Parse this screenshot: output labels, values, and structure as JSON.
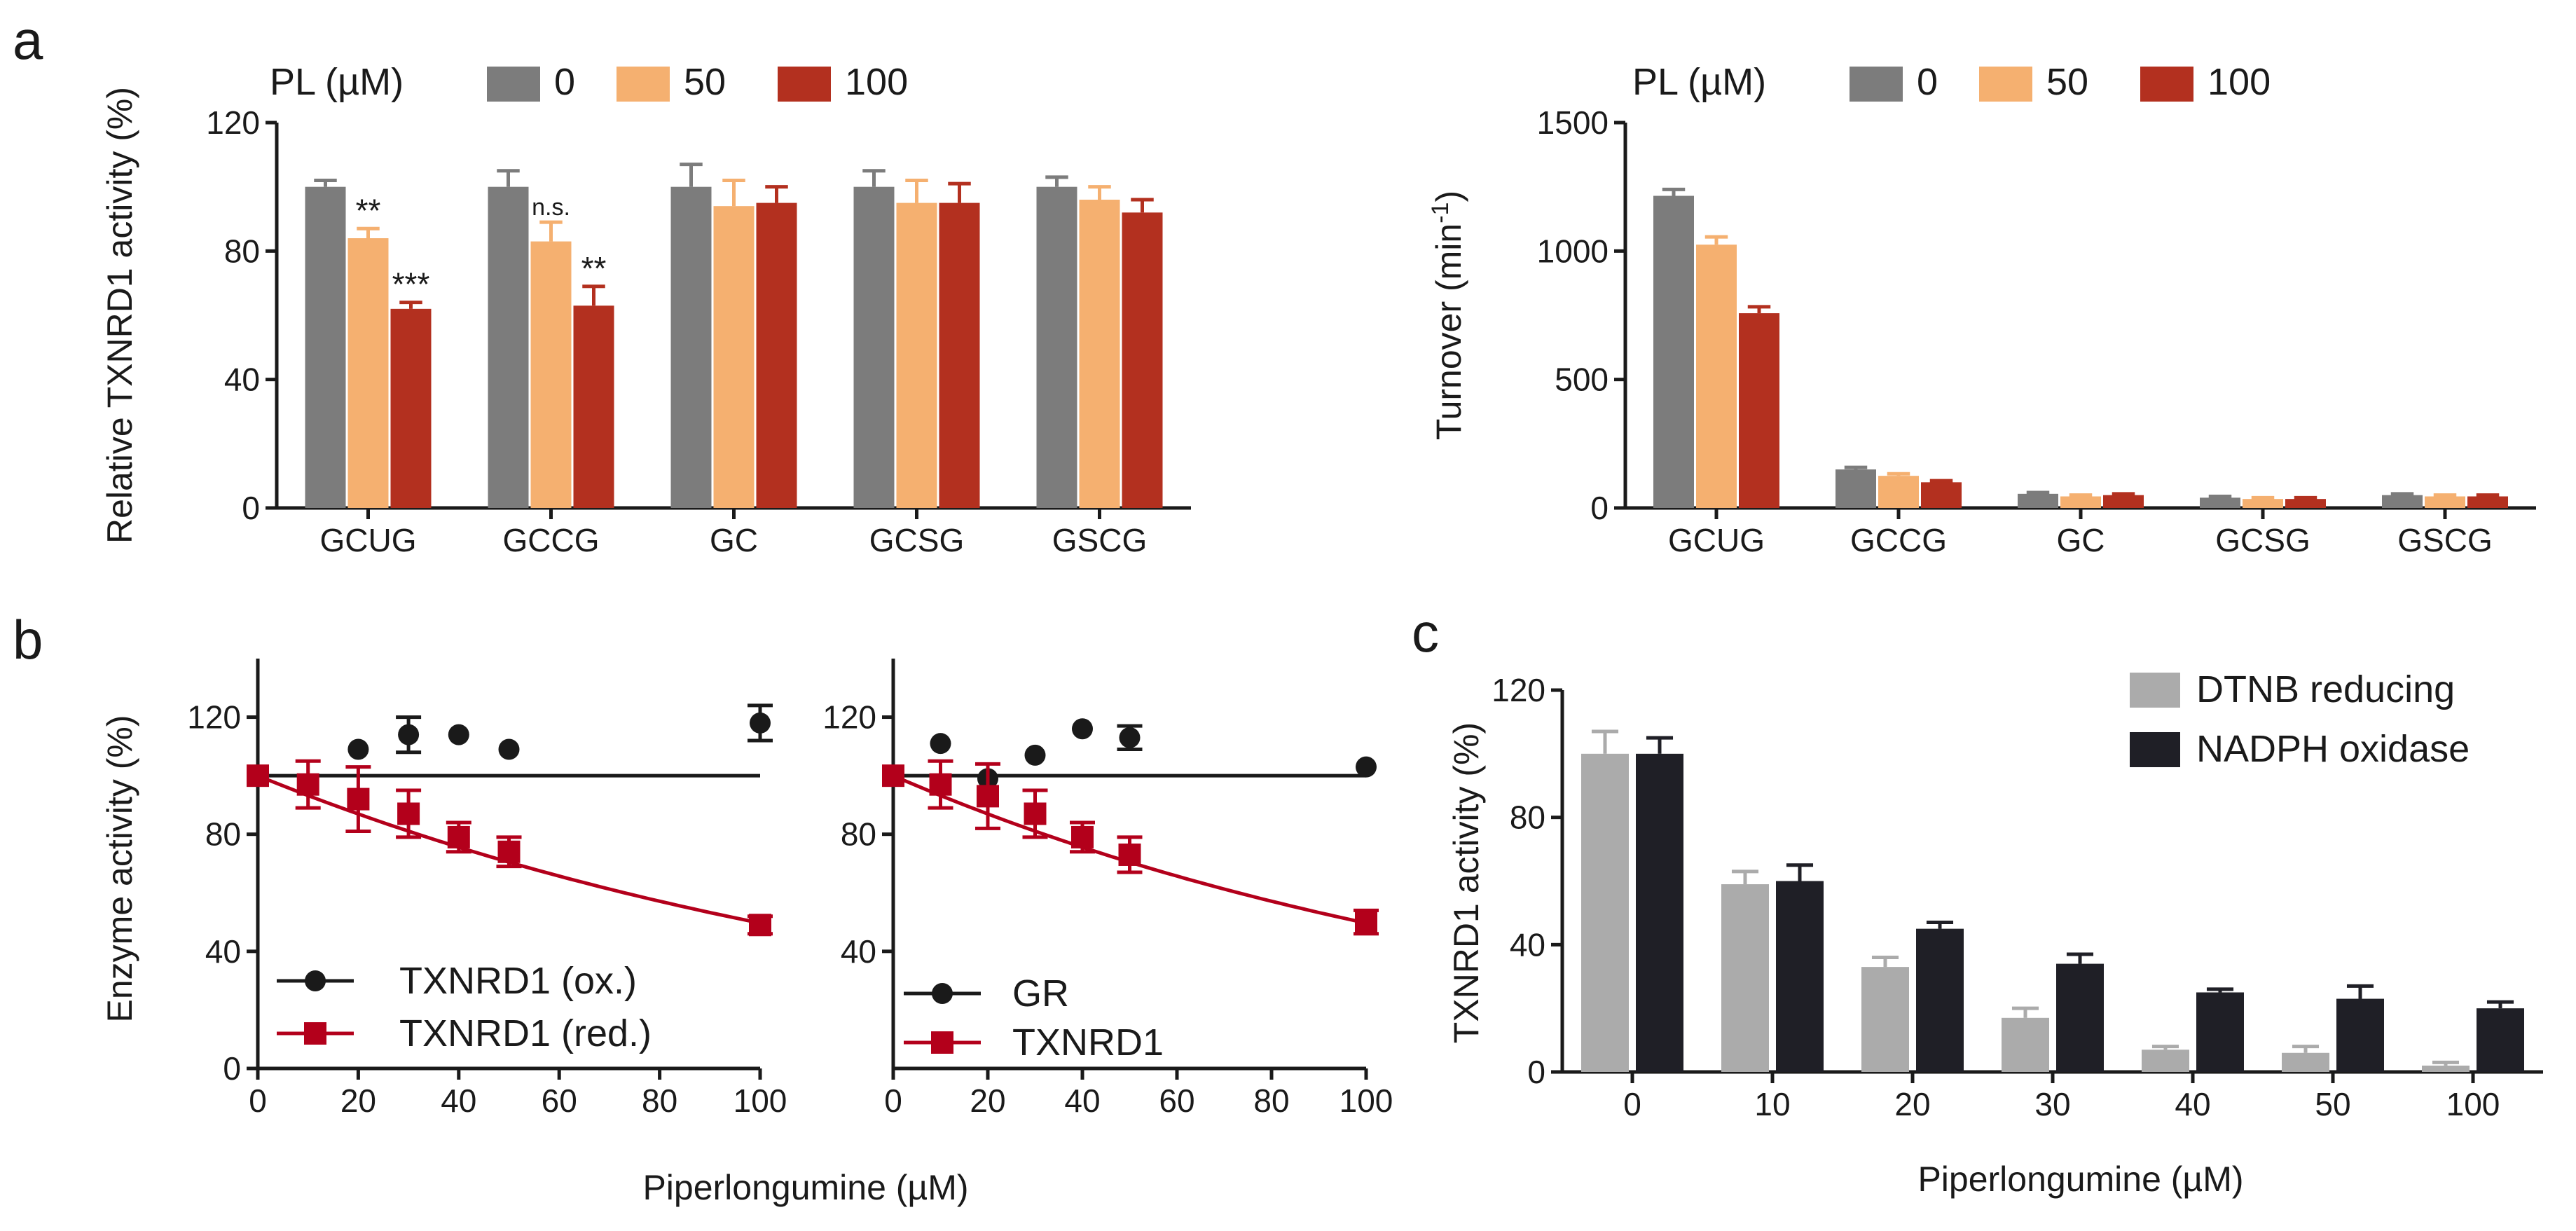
{
  "colors": {
    "pl0": "#7c7c7c",
    "pl50": "#f5b070",
    "pl100": "#b3301f",
    "dtnb": "#ababab",
    "nadph": "#1f1f26",
    "ox": "#1a1a1a",
    "red": "#b3001b"
  },
  "panels": {
    "a": "a",
    "b": "b",
    "c": "c"
  },
  "chart_data": [
    {
      "id": "a1",
      "type": "bar",
      "legend_title": "PL (µM)",
      "categories": [
        "GCUG",
        "GCCG",
        "GC",
        "GCSG",
        "GSCG"
      ],
      "series": [
        {
          "name": "0",
          "values": [
            100,
            100,
            100,
            100,
            100
          ],
          "errors": [
            2,
            5,
            7,
            5,
            3
          ]
        },
        {
          "name": "50",
          "values": [
            84,
            83,
            94,
            95,
            96
          ],
          "errors": [
            3,
            6,
            8,
            7,
            4
          ]
        },
        {
          "name": "100",
          "values": [
            62,
            63,
            95,
            95,
            92
          ],
          "errors": [
            2,
            6,
            5,
            6,
            4
          ]
        }
      ],
      "significance": [
        {
          "category": "GCUG",
          "series": "50",
          "label": "**"
        },
        {
          "category": "GCUG",
          "series": "100",
          "label": "***"
        },
        {
          "category": "GCCG",
          "series": "50",
          "label": "n.s."
        },
        {
          "category": "GCCG",
          "series": "100",
          "label": "**"
        }
      ],
      "ylabel": "Relative TXNRD1 activity (%)",
      "ylim": [
        0,
        120
      ],
      "yticks": [
        "0",
        "40",
        "80",
        "120"
      ]
    },
    {
      "id": "a2",
      "type": "bar",
      "legend_title": "PL (µM)",
      "categories": [
        "GCUG",
        "GCCG",
        "GC",
        "GCSG",
        "GSCG"
      ],
      "series": [
        {
          "name": "0",
          "values": [
            1215,
            150,
            55,
            40,
            50
          ],
          "errors": [
            25,
            8,
            5,
            5,
            5
          ]
        },
        {
          "name": "50",
          "values": [
            1025,
            125,
            45,
            35,
            45
          ],
          "errors": [
            30,
            8,
            5,
            5,
            5
          ]
        },
        {
          "name": "100",
          "values": [
            758,
            100,
            50,
            35,
            45
          ],
          "errors": [
            25,
            6,
            5,
            5,
            5
          ]
        }
      ],
      "ylabel_main": "Turnover (min",
      "ylabel_sup": "-1",
      "ylabel_close": ")",
      "ylim": [
        0,
        1500
      ],
      "yticks": [
        "0",
        "500",
        "1000",
        "1500"
      ]
    },
    {
      "id": "b1",
      "type": "scatter",
      "x": [
        0,
        10,
        20,
        30,
        40,
        50,
        100
      ],
      "xticks": [
        "0",
        "20",
        "40",
        "60",
        "80",
        "100"
      ],
      "xlim": [
        0,
        100
      ],
      "ylim": [
        0,
        140
      ],
      "yticks": [
        "0",
        "40",
        "80",
        "120"
      ],
      "ylabel": "Enzyme activity (%)",
      "series": [
        {
          "name": "TXNRD1 (ox.)",
          "marker": "circle",
          "points": [
            [
              20,
              109,
              0
            ],
            [
              30,
              114,
              6
            ],
            [
              40,
              114,
              0
            ],
            [
              50,
              109,
              0
            ],
            [
              100,
              118,
              6
            ]
          ],
          "fit": "flat",
          "fit_value": 100
        },
        {
          "name": "TXNRD1 (red.)",
          "marker": "square",
          "points": [
            [
              0,
              100,
              0
            ],
            [
              10,
              97,
              8
            ],
            [
              20,
              92,
              11
            ],
            [
              30,
              87,
              8
            ],
            [
              40,
              79,
              5
            ],
            [
              50,
              74,
              5
            ],
            [
              100,
              49,
              3
            ]
          ],
          "fit": "decay",
          "fit_k": 0.007
        }
      ]
    },
    {
      "id": "b2",
      "type": "scatter",
      "x": [
        0,
        10,
        20,
        30,
        40,
        50,
        100
      ],
      "xticks": [
        "0",
        "20",
        "40",
        "60",
        "80",
        "100"
      ],
      "xlim": [
        0,
        100
      ],
      "ylim": [
        0,
        140
      ],
      "yticks": [
        "40",
        "80",
        "120"
      ],
      "xlabel": "Piperlongumine (µM)",
      "series": [
        {
          "name": "GR",
          "marker": "circle",
          "points": [
            [
              10,
              111,
              0
            ],
            [
              20,
              99,
              0
            ],
            [
              30,
              107,
              0
            ],
            [
              40,
              116,
              0
            ],
            [
              50,
              113,
              4
            ],
            [
              100,
              103,
              0
            ]
          ],
          "fit": "flat",
          "fit_value": 100
        },
        {
          "name": "TXNRD1",
          "marker": "square",
          "points": [
            [
              0,
              100,
              0
            ],
            [
              10,
              97,
              8
            ],
            [
              20,
              93,
              11
            ],
            [
              30,
              87,
              8
            ],
            [
              40,
              79,
              5
            ],
            [
              50,
              73,
              6
            ],
            [
              100,
              50,
              4
            ]
          ],
          "fit": "decay",
          "fit_k": 0.007
        }
      ]
    },
    {
      "id": "c",
      "type": "bar",
      "categories": [
        "0",
        "10",
        "20",
        "30",
        "40",
        "50",
        "100"
      ],
      "series": [
        {
          "name": "DTNB reducing",
          "values": [
            100,
            59,
            33,
            17,
            7,
            6,
            2
          ],
          "errors": [
            7,
            4,
            3,
            3,
            1,
            2,
            1
          ]
        },
        {
          "name": "NADPH oxidase",
          "values": [
            100,
            60,
            45,
            34,
            25,
            23,
            20
          ],
          "errors": [
            5,
            5,
            2,
            3,
            1,
            4,
            2
          ]
        }
      ],
      "xlabel": "Piperlongumine (µM)",
      "ylabel": "TXNRD1 activity (%)",
      "ylim": [
        0,
        120
      ],
      "yticks": [
        "0",
        "40",
        "80",
        "120"
      ]
    }
  ]
}
